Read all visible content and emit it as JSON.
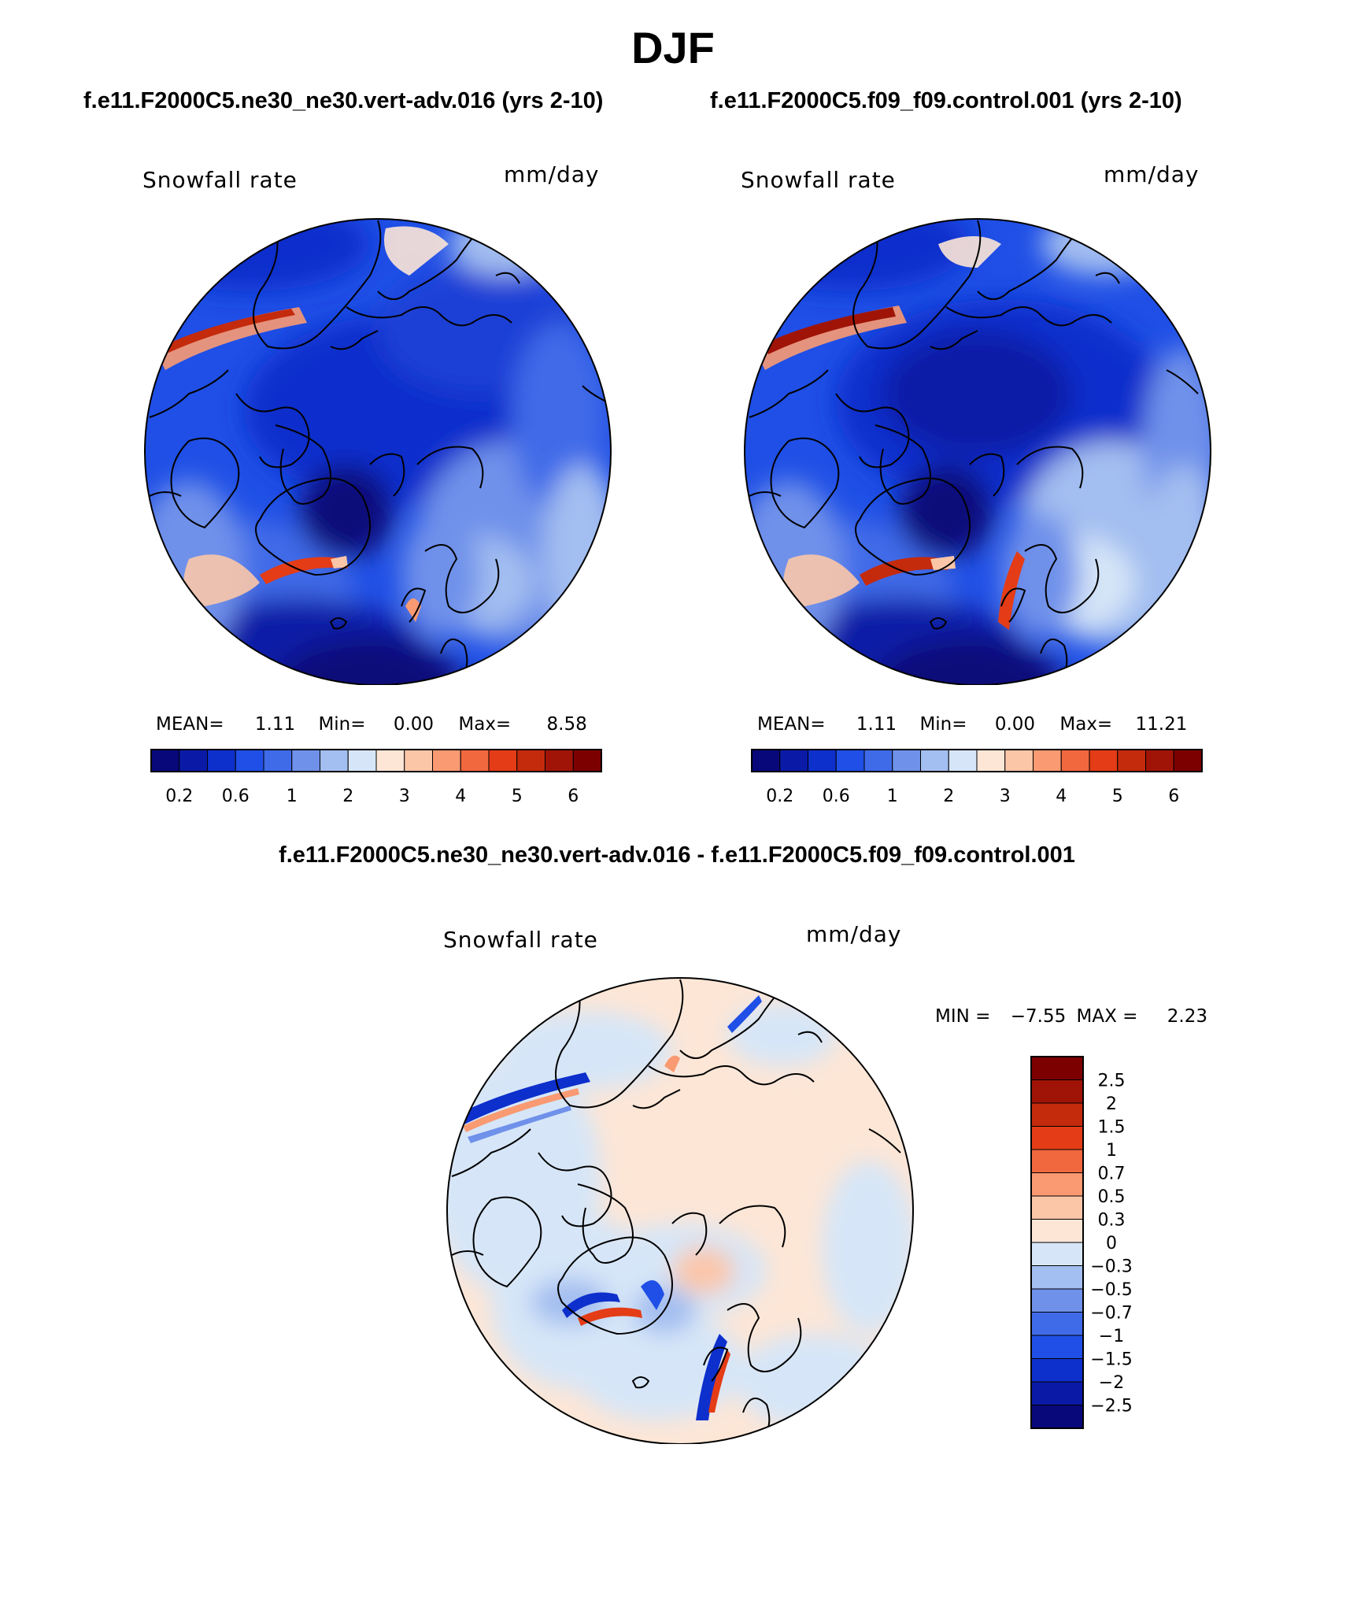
{
  "figure": {
    "title": "DJF",
    "case1_title": "f.e11.F2000C5.ne30_ne30.vert-adv.016 (yrs 2-10)",
    "case2_title": "f.e11.F2000C5.f09_f09.control.001 (yrs 2-10)",
    "diff_title": "f.e11.F2000C5.ne30_ne30.vert-adv.016 - f.e11.F2000C5.f09_f09.control.001"
  },
  "panels": {
    "left": {
      "variable": "Snowfall rate",
      "units": "mm/day",
      "stats": {
        "mean_label": "MEAN=",
        "mean": "1.11",
        "min_label": "Min=",
        "min": "0.00",
        "max_label": "Max=",
        "max": "8.58"
      }
    },
    "right": {
      "variable": "Snowfall rate",
      "units": "mm/day",
      "stats": {
        "mean_label": "MEAN=",
        "mean": "1.11",
        "min_label": "Min=",
        "min": "0.00",
        "max_label": "Max=",
        "max": "11.21"
      }
    },
    "diff": {
      "variable": "Snowfall rate",
      "units": "mm/day",
      "stats": {
        "min_label": "MIN =",
        "min": "−7.55",
        "max_label": "MAX =",
        "max": "2.23"
      }
    }
  },
  "chart_data": [
    {
      "type": "heatmap",
      "projection": "north polar stereographic",
      "title": "Snowfall rate",
      "units": "mm/day",
      "stats": {
        "mean": 1.11,
        "min": 0.0,
        "max": 8.58
      },
      "colorbar": {
        "orientation": "horizontal",
        "levels": [
          0.2,
          0.4,
          0.6,
          0.8,
          1,
          1.5,
          2,
          2.5,
          3,
          3.5,
          4,
          4.5,
          5,
          5.5,
          6
        ],
        "tick_labels": [
          "0.2",
          "0.6",
          "1",
          "2",
          "3",
          "4",
          "5",
          "6"
        ],
        "colors": [
          "#08087a",
          "#0a1aa6",
          "#0d2fcc",
          "#1f4fe6",
          "#3f6ae8",
          "#6f91ea",
          "#a3bef0",
          "#d6e6f8",
          "#fde6d6",
          "#fbc6a8",
          "#f99a72",
          "#f2683e",
          "#e43c16",
          "#c42a0c",
          "#a01408",
          "#7c0000"
        ]
      }
    },
    {
      "type": "heatmap",
      "projection": "north polar stereographic",
      "title": "Snowfall rate",
      "units": "mm/day",
      "stats": {
        "mean": 1.11,
        "min": 0.0,
        "max": 11.21
      },
      "colorbar": {
        "orientation": "horizontal",
        "levels": [
          0.2,
          0.4,
          0.6,
          0.8,
          1,
          1.5,
          2,
          2.5,
          3,
          3.5,
          4,
          4.5,
          5,
          5.5,
          6
        ],
        "tick_labels": [
          "0.2",
          "0.6",
          "1",
          "2",
          "3",
          "4",
          "5",
          "6"
        ],
        "colors": [
          "#08087a",
          "#0a1aa6",
          "#0d2fcc",
          "#1f4fe6",
          "#3f6ae8",
          "#6f91ea",
          "#a3bef0",
          "#d6e6f8",
          "#fde6d6",
          "#fbc6a8",
          "#f99a72",
          "#f2683e",
          "#e43c16",
          "#c42a0c",
          "#a01408",
          "#7c0000"
        ]
      }
    },
    {
      "type": "heatmap",
      "projection": "north polar stereographic",
      "title": "Snowfall rate",
      "units": "mm/day",
      "stats": {
        "min": -7.55,
        "max": 2.23
      },
      "colorbar": {
        "orientation": "vertical",
        "levels": [
          2.5,
          2,
          1.5,
          1,
          0.7,
          0.5,
          0.3,
          0,
          -0.3,
          -0.5,
          -0.7,
          -1,
          -1.5,
          -2,
          -2.5
        ],
        "tick_labels": [
          "2.5",
          "2",
          "1.5",
          "1",
          "0.7",
          "0.5",
          "0.3",
          "0",
          "−0.3",
          "−0.5",
          "−0.7",
          "−1",
          "−1.5",
          "−2",
          "−2.5"
        ],
        "colors": [
          "#7c0000",
          "#a01408",
          "#c42a0c",
          "#e43c16",
          "#f2683e",
          "#f99a72",
          "#fbc6a8",
          "#fde6d6",
          "#d6e6f8",
          "#a3bef0",
          "#6f91ea",
          "#3f6ae8",
          "#1f4fe6",
          "#0d2fcc",
          "#0a1aa6",
          "#08087a"
        ]
      }
    }
  ]
}
